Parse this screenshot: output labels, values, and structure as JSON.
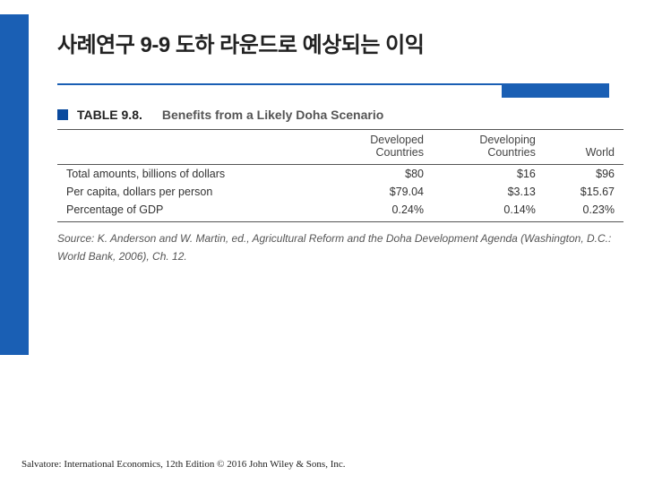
{
  "title": "사례연구 9-9  도하 라운드로 예상되는 이익",
  "table": {
    "label": "TABLE 9.8.",
    "caption": "Benefits from a Likely Doha Scenario",
    "columns": [
      "",
      "Developed\nCountries",
      "Developing\nCountries",
      "World"
    ],
    "rows": [
      [
        "Total amounts, billions of dollars",
        "$80",
        "$16",
        "$96"
      ],
      [
        "Per capita, dollars per person",
        "$79.04",
        "$3.13",
        "$15.67"
      ],
      [
        "Percentage of GDP",
        "0.24%",
        "0.14%",
        "0.23%"
      ]
    ],
    "source_prefix": "Source:",
    "source_text": " K. Anderson and W. Martin, ed., ",
    "source_title": "Agricultural Reform and the Doha Development Agenda",
    "source_suffix": " (Washington, D.C.: World Bank, 2006), Ch. 12."
  },
  "footer": "Salvatore: International Economics, 12th Edition © 2016 John Wiley & Sons, Inc.",
  "colors": {
    "blue": "#1a5fb4",
    "marker": "#0a4a9e"
  }
}
